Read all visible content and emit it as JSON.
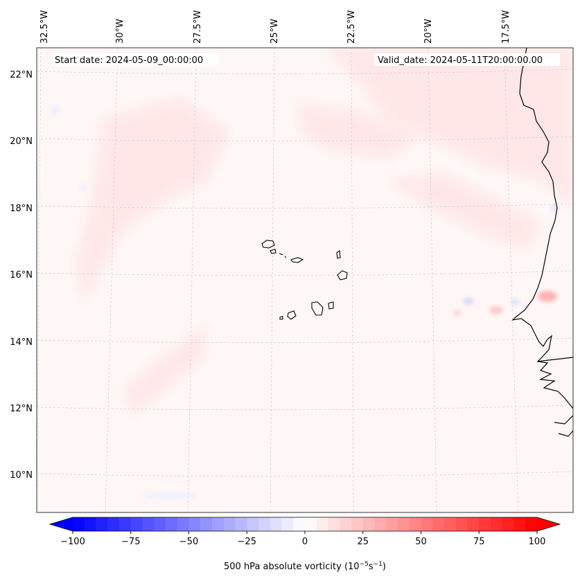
{
  "map": {
    "start_date": "Start date: 2024-05-09_00:00:00",
    "valid_date": "Valid_date: 2024-05-11T20:00:00.00",
    "lon_labels": [
      "32.5°W",
      "30°W",
      "27.5°W",
      "25°W",
      "22.5°W",
      "20°W",
      "17.5°W"
    ],
    "lat_labels": [
      "22°N",
      "20°N",
      "18°N",
      "16°N",
      "14°N",
      "12°N",
      "10°N"
    ],
    "gridlines": true,
    "features": [
      "coastline-west-africa",
      "cape-verde-islands"
    ]
  },
  "colorbar": {
    "label_prefix": "500 hPa absolute vorticity (10",
    "label_exp1": "−5",
    "label_mid": "s",
    "label_exp2": "−1",
    "label_suffix": ")",
    "ticks": [
      "−100",
      "−75",
      "−50",
      "−25",
      "0",
      "25",
      "50",
      "75",
      "100"
    ],
    "min": -100,
    "max": 100,
    "n_levels": 40,
    "colormap": "bwr",
    "extend": "both",
    "color_low": "#0000ff",
    "color_mid": "#ffffff",
    "color_high": "#ff0000"
  }
}
